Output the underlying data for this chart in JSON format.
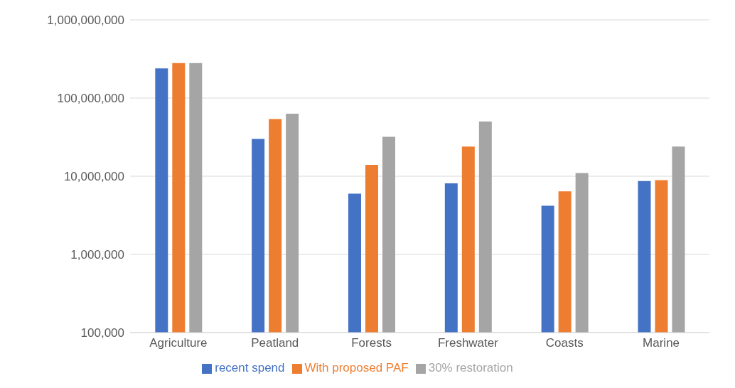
{
  "chart_data": {
    "type": "bar",
    "categories": [
      "Agriculture",
      "Peatland",
      "Forests",
      "Freshwater",
      "Coasts",
      "Marine"
    ],
    "series": [
      {
        "name": "recent spend",
        "color": "#4472c4",
        "values": [
          240000000,
          30000000,
          6000000,
          8100000,
          4200000,
          8700000
        ]
      },
      {
        "name": "With proposed PAF",
        "color": "#ed7d31",
        "values": [
          280000000,
          54000000,
          14000000,
          24000000,
          6400000,
          8900000
        ]
      },
      {
        "name": "30% restoration",
        "color": "#a5a5a5",
        "values": [
          280000000,
          63000000,
          32000000,
          50000000,
          11000000,
          24000000
        ]
      }
    ],
    "log": true,
    "ylim": [
      100000,
      1000000000
    ],
    "yticks": [
      {
        "value": 100000,
        "label": "100,000"
      },
      {
        "value": 1000000,
        "label": "1,000,000"
      },
      {
        "value": 10000000,
        "label": "10,000,000"
      },
      {
        "value": 100000000,
        "label": "100,000,000"
      },
      {
        "value": 1000000000,
        "label": "1,000,000,000"
      }
    ],
    "grid": "y",
    "legend": "bottom"
  }
}
